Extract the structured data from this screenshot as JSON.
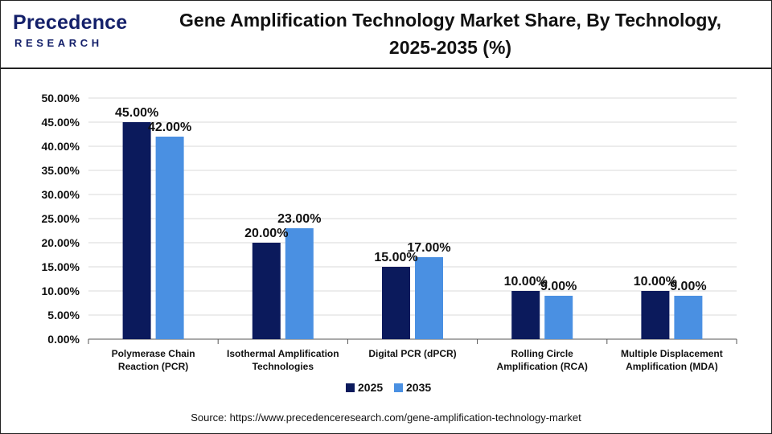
{
  "brand": {
    "logo_main": "Precedence",
    "logo_sub": "RESEARCH"
  },
  "header": {
    "title_line1": "Gene Amplification Technology Market Share, By Technology,",
    "title_line2": "2025-2035 (%)"
  },
  "footer": {
    "source": "Source: https://www.precedenceresearch.com/gene-amplification-technology-market"
  },
  "chart_data": {
    "type": "bar",
    "title": "Gene Amplification Technology Market Share, By Technology, 2025-2035 (%)",
    "xlabel": "",
    "ylabel": "",
    "categories": [
      [
        "Polymerase Chain",
        "Reaction (PCR)"
      ],
      [
        "Isothermal Amplification",
        "Technologies"
      ],
      [
        "Digital PCR (dPCR)"
      ],
      [
        "Rolling Circle",
        "Amplification (RCA)"
      ],
      [
        "Multiple Displacement",
        "Amplification (MDA)"
      ]
    ],
    "series": [
      {
        "name": "2025",
        "color": "#0b1a5c",
        "values": [
          45.0,
          20.0,
          15.0,
          10.0,
          10.0
        ],
        "labels": [
          "45.00%",
          "20.00%",
          "15.00%",
          "10.00%",
          "10.00%"
        ]
      },
      {
        "name": "2035",
        "color": "#4a90e2",
        "values": [
          42.0,
          23.0,
          17.0,
          9.0,
          9.0
        ],
        "labels": [
          "42.00%",
          "23.00%",
          "17.00%",
          "9.00%",
          "9.00%"
        ]
      }
    ],
    "ylim": [
      0,
      50
    ],
    "yticks": [
      0,
      5,
      10,
      15,
      20,
      25,
      30,
      35,
      40,
      45,
      50
    ],
    "ytick_labels": [
      "0.00%",
      "5.00%",
      "10.00%",
      "15.00%",
      "20.00%",
      "25.00%",
      "30.00%",
      "35.00%",
      "40.00%",
      "45.00%",
      "50.00%"
    ],
    "grid": true,
    "legend_position": "bottom-center"
  }
}
